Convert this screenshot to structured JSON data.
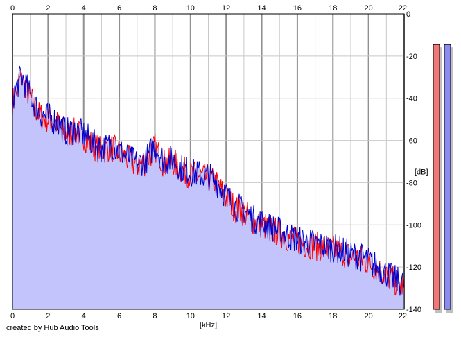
{
  "colors": {
    "left_channel": "#ff0000",
    "right_channel": "#0000cc",
    "fill": "#c4c4fc",
    "grid": "#c8c8c8",
    "grid_major": "#909090",
    "meter_left": "#f07878",
    "meter_right": "#8c8cf0",
    "meter_shadow": "#c0c0c0"
  },
  "credit": "created by Hub Audio Tools",
  "chart_data": {
    "type": "area",
    "xlabel": "[kHz]",
    "ylabel": "[dB]",
    "xlim": [
      0,
      22
    ],
    "ylim": [
      -140,
      0
    ],
    "x_ticks": [
      "0",
      "2",
      "4",
      "6",
      "8",
      "10",
      "12",
      "14",
      "16",
      "18",
      "20",
      "22"
    ],
    "y_ticks": [
      "0",
      "-20",
      "-40",
      "-60",
      "-80",
      "-100",
      "-120",
      "-140"
    ],
    "grid": true,
    "legend": "none",
    "x": [
      0,
      0.5,
      1,
      1.5,
      2,
      2.5,
      3,
      3.5,
      4,
      4.5,
      5,
      5.5,
      6,
      6.5,
      7,
      7.5,
      8,
      8.5,
      9,
      9.5,
      10,
      10.5,
      11,
      11.5,
      12,
      12.5,
      13,
      13.5,
      14,
      14.5,
      15,
      15.5,
      16,
      16.5,
      17,
      17.5,
      18,
      18.5,
      19,
      19.5,
      20,
      20.5,
      21,
      21.5,
      22
    ],
    "series": [
      {
        "values": [
          -42,
          -30,
          -40,
          -48,
          -50,
          -52,
          -57,
          -56,
          -58,
          -62,
          -65,
          -63,
          -66,
          -69,
          -72,
          -70,
          -63,
          -71,
          -70,
          -74,
          -76,
          -77,
          -78,
          -81,
          -87,
          -92,
          -94,
          -98,
          -100,
          -102,
          -104,
          -106,
          -108,
          -109,
          -110,
          -111,
          -112,
          -113,
          -115,
          -116,
          -118,
          -121,
          -124,
          -127,
          -129
        ]
      },
      {
        "values": [
          -40,
          -29,
          -39,
          -47,
          -49,
          -51,
          -56,
          -55,
          -57,
          -61,
          -64,
          -62,
          -65,
          -68,
          -71,
          -69,
          -62,
          -70,
          -69,
          -73,
          -75,
          -76,
          -77,
          -80,
          -86,
          -91,
          -93,
          -97,
          -99,
          -101,
          -103,
          -105,
          -107,
          -108,
          -109,
          -110,
          -111,
          -112,
          -114,
          -115,
          -117,
          -120,
          -123,
          -126,
          -128
        ]
      }
    ],
    "level_meters": [
      -4,
      -4
    ]
  }
}
